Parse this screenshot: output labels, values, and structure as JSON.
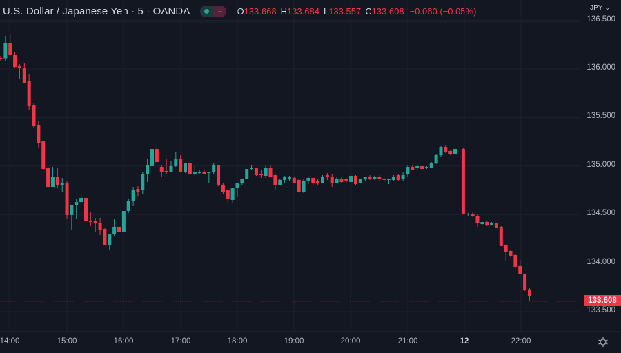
{
  "header": {
    "symbol_title": "U.S. Dollar / Japanese Yen · 5 · OANDA",
    "ohlc": {
      "open_label": "O",
      "open": "133.668",
      "high_label": "H",
      "high": "133.684",
      "low_label": "L",
      "low": "133.557",
      "close_label": "C",
      "close": "133.608",
      "change": "−0.060 (−0.05%)"
    },
    "currency": "JPY",
    "currency_chevron": "⌄",
    "toggle_icons": [
      "market-open-dot-icon",
      "delayed-data-icon"
    ]
  },
  "settings_icon": "gear-icon",
  "last_price_label": "133.608",
  "colors": {
    "background": "#131722",
    "up": "#26a69a",
    "down": "#f23645",
    "grid": "#1e222d",
    "text": "#b2b5be"
  },
  "chart_data": {
    "type": "candlestick",
    "title": "U.S. Dollar / Japanese Yen · 5 · OANDA",
    "interval": "5 min",
    "xlabel": "",
    "ylabel": "JPY",
    "ylim": [
      133.45,
      136.55
    ],
    "y_ticks": [
      "136.500",
      "136.000",
      "135.500",
      "135.000",
      "134.500",
      "134.000",
      "133.500"
    ],
    "x_ticks": [
      "14:00",
      "15:00",
      "16:00",
      "17:00",
      "18:00",
      "19:00",
      "20:00",
      "21:00",
      "12",
      "22:00"
    ],
    "grid": true,
    "last_price": 133.608,
    "candles": [
      {
        "t": "13:50",
        "o": 136.113,
        "h": 136.135,
        "l": 136.084,
        "c": 136.11
      },
      {
        "t": "13:55",
        "o": 136.11,
        "h": 136.341,
        "l": 136.085,
        "c": 136.263
      },
      {
        "t": "14:00",
        "o": 136.263,
        "h": 136.362,
        "l": 136.128,
        "c": 136.142
      },
      {
        "t": "14:05",
        "o": 136.142,
        "h": 136.178,
        "l": 136.014,
        "c": 136.021
      },
      {
        "t": "14:10",
        "o": 136.028,
        "h": 136.05,
        "l": 135.893,
        "c": 136.007
      },
      {
        "t": "14:15",
        "o": 136.007,
        "h": 136.064,
        "l": 135.851,
        "c": 135.858
      },
      {
        "t": "14:20",
        "o": 135.872,
        "h": 135.95,
        "l": 135.574,
        "c": 135.616
      },
      {
        "t": "14:25",
        "o": 135.623,
        "h": 135.645,
        "l": 135.396,
        "c": 135.41
      },
      {
        "t": "14:30",
        "o": 135.418,
        "h": 135.46,
        "l": 135.19,
        "c": 135.24
      },
      {
        "t": "14:35",
        "o": 135.254,
        "h": 135.261,
        "l": 134.97,
        "c": 134.97
      },
      {
        "t": "14:40",
        "o": 134.977,
        "h": 134.991,
        "l": 134.773,
        "c": 134.785
      },
      {
        "t": "14:45",
        "o": 134.785,
        "h": 134.991,
        "l": 134.785,
        "c": 134.885
      },
      {
        "t": "14:50",
        "o": 134.885,
        "h": 134.985,
        "l": 134.77,
        "c": 134.807
      },
      {
        "t": "14:55",
        "o": 134.807,
        "h": 134.878,
        "l": 134.736,
        "c": 134.828
      },
      {
        "t": "15:00",
        "o": 134.828,
        "h": 134.842,
        "l": 134.459,
        "c": 134.495
      },
      {
        "t": "15:05",
        "o": 134.495,
        "h": 134.551,
        "l": 134.345,
        "c": 134.601
      },
      {
        "t": "15:10",
        "o": 134.601,
        "h": 134.665,
        "l": 134.459,
        "c": 134.629
      },
      {
        "t": "15:15",
        "o": 134.629,
        "h": 134.707,
        "l": 134.629,
        "c": 134.672
      },
      {
        "t": "15:20",
        "o": 134.672,
        "h": 134.686,
        "l": 134.431,
        "c": 134.431
      },
      {
        "t": "15:25",
        "o": 134.438,
        "h": 134.523,
        "l": 134.381,
        "c": 134.424
      },
      {
        "t": "15:30",
        "o": 134.431,
        "h": 134.466,
        "l": 134.324,
        "c": 134.409
      },
      {
        "t": "15:35",
        "o": 134.416,
        "h": 134.466,
        "l": 134.289,
        "c": 134.338
      },
      {
        "t": "15:40",
        "o": 134.352,
        "h": 134.359,
        "l": 134.182,
        "c": 134.189
      },
      {
        "t": "15:45",
        "o": 134.189,
        "h": 134.239,
        "l": 134.139,
        "c": 134.295
      },
      {
        "t": "15:50",
        "o": 134.295,
        "h": 134.451,
        "l": 134.281,
        "c": 134.374
      },
      {
        "t": "15:55",
        "o": 134.374,
        "h": 134.395,
        "l": 134.303,
        "c": 134.324
      },
      {
        "t": "16:00",
        "o": 134.324,
        "h": 134.537,
        "l": 134.317,
        "c": 134.537
      },
      {
        "t": "16:05",
        "o": 134.537,
        "h": 134.665,
        "l": 134.516,
        "c": 134.643
      },
      {
        "t": "16:10",
        "o": 134.643,
        "h": 134.785,
        "l": 134.587,
        "c": 134.75
      },
      {
        "t": "16:15",
        "o": 134.764,
        "h": 134.792,
        "l": 134.693,
        "c": 134.736
      },
      {
        "t": "16:20",
        "o": 134.757,
        "h": 134.935,
        "l": 134.714,
        "c": 134.913
      },
      {
        "t": "16:25",
        "o": 134.92,
        "h": 135.07,
        "l": 134.835,
        "c": 135.006
      },
      {
        "t": "16:30",
        "o": 134.999,
        "h": 135.183,
        "l": 134.991,
        "c": 135.176
      },
      {
        "t": "16:35",
        "o": 135.176,
        "h": 135.212,
        "l": 135.027,
        "c": 135.041
      },
      {
        "t": "16:40",
        "o": 134.991,
        "h": 135.006,
        "l": 134.892,
        "c": 134.942
      },
      {
        "t": "16:45",
        "o": 134.949,
        "h": 135.077,
        "l": 134.913,
        "c": 134.935
      },
      {
        "t": "16:50",
        "o": 134.942,
        "h": 135.055,
        "l": 134.935,
        "c": 134.999
      },
      {
        "t": "16:55",
        "o": 134.999,
        "h": 135.148,
        "l": 134.991,
        "c": 135.077
      },
      {
        "t": "17:00",
        "o": 135.077,
        "h": 135.112,
        "l": 134.935,
        "c": 134.942
      },
      {
        "t": "17:05",
        "o": 134.935,
        "h": 134.949,
        "l": 134.928,
        "c": 135.034
      },
      {
        "t": "17:10",
        "o": 135.034,
        "h": 135.07,
        "l": 134.913,
        "c": 134.913
      },
      {
        "t": "17:15",
        "o": 134.92,
        "h": 134.999,
        "l": 134.899,
        "c": 134.935
      },
      {
        "t": "17:20",
        "o": 134.928,
        "h": 134.963,
        "l": 134.913,
        "c": 134.942
      },
      {
        "t": "17:25",
        "o": 134.942,
        "h": 134.963,
        "l": 134.913,
        "c": 134.92
      },
      {
        "t": "17:30",
        "o": 134.928,
        "h": 134.935,
        "l": 134.828,
        "c": 134.935
      },
      {
        "t": "17:35",
        "o": 134.935,
        "h": 135.027,
        "l": 134.92,
        "c": 135.006
      },
      {
        "t": "17:40",
        "o": 135.006,
        "h": 135.013,
        "l": 134.792,
        "c": 134.8
      },
      {
        "t": "17:45",
        "o": 134.807,
        "h": 134.821,
        "l": 134.714,
        "c": 134.729
      },
      {
        "t": "17:50",
        "o": 134.75,
        "h": 134.757,
        "l": 134.623,
        "c": 134.665
      },
      {
        "t": "17:55",
        "o": 134.651,
        "h": 134.665,
        "l": 134.623,
        "c": 134.771
      },
      {
        "t": "18:00",
        "o": 134.771,
        "h": 134.785,
        "l": 134.679,
        "c": 134.821
      },
      {
        "t": "18:05",
        "o": 134.821,
        "h": 134.842,
        "l": 134.807,
        "c": 134.871
      },
      {
        "t": "18:10",
        "o": 134.871,
        "h": 134.97,
        "l": 134.864,
        "c": 134.97
      },
      {
        "t": "18:15",
        "o": 134.97,
        "h": 135.013,
        "l": 134.956,
        "c": 134.984
      },
      {
        "t": "18:20",
        "o": 134.984,
        "h": 134.984,
        "l": 134.899,
        "c": 134.906
      },
      {
        "t": "18:25",
        "o": 134.92,
        "h": 134.956,
        "l": 134.878,
        "c": 134.906
      },
      {
        "t": "18:30",
        "o": 134.899,
        "h": 135.006,
        "l": 134.878,
        "c": 134.984
      },
      {
        "t": "18:35",
        "o": 134.984,
        "h": 135.013,
        "l": 134.892,
        "c": 134.892
      },
      {
        "t": "18:40",
        "o": 134.906,
        "h": 134.913,
        "l": 134.757,
        "c": 134.8
      },
      {
        "t": "18:45",
        "o": 134.807,
        "h": 134.871,
        "l": 134.8,
        "c": 134.857
      },
      {
        "t": "18:50",
        "o": 134.857,
        "h": 134.899,
        "l": 134.828,
        "c": 134.885
      },
      {
        "t": "18:55",
        "o": 134.871,
        "h": 134.899,
        "l": 134.842,
        "c": 134.885
      },
      {
        "t": "19:00",
        "o": 134.878,
        "h": 134.885,
        "l": 134.821,
        "c": 134.828
      },
      {
        "t": "19:05",
        "o": 134.857,
        "h": 134.864,
        "l": 134.729,
        "c": 134.736
      },
      {
        "t": "19:10",
        "o": 134.736,
        "h": 134.864,
        "l": 134.722,
        "c": 134.85
      },
      {
        "t": "19:15",
        "o": 134.85,
        "h": 134.892,
        "l": 134.814,
        "c": 134.878
      },
      {
        "t": "19:20",
        "o": 134.878,
        "h": 134.878,
        "l": 134.807,
        "c": 134.821
      },
      {
        "t": "19:25",
        "o": 134.85,
        "h": 134.864,
        "l": 134.807,
        "c": 134.828
      },
      {
        "t": "19:30",
        "o": 134.828,
        "h": 134.906,
        "l": 134.821,
        "c": 134.892
      },
      {
        "t": "19:35",
        "o": 134.906,
        "h": 134.928,
        "l": 134.857,
        "c": 134.885
      },
      {
        "t": "19:40",
        "o": 134.892,
        "h": 134.913,
        "l": 134.786,
        "c": 134.828
      },
      {
        "t": "19:45",
        "o": 134.828,
        "h": 134.885,
        "l": 134.821,
        "c": 134.864
      },
      {
        "t": "19:50",
        "o": 134.871,
        "h": 134.892,
        "l": 134.828,
        "c": 134.835
      },
      {
        "t": "19:55",
        "o": 134.864,
        "h": 134.878,
        "l": 134.821,
        "c": 134.85
      },
      {
        "t": "20:00",
        "o": 134.835,
        "h": 134.906,
        "l": 134.821,
        "c": 134.899
      },
      {
        "t": "20:05",
        "o": 134.899,
        "h": 134.906,
        "l": 134.807,
        "c": 134.814
      },
      {
        "t": "20:10",
        "o": 134.828,
        "h": 134.871,
        "l": 134.821,
        "c": 134.864
      },
      {
        "t": "20:15",
        "o": 134.864,
        "h": 134.892,
        "l": 134.85,
        "c": 134.892
      },
      {
        "t": "20:20",
        "o": 134.892,
        "h": 134.906,
        "l": 134.857,
        "c": 134.871
      },
      {
        "t": "20:25",
        "o": 134.871,
        "h": 134.899,
        "l": 134.857,
        "c": 134.885
      },
      {
        "t": "20:30",
        "o": 134.892,
        "h": 134.906,
        "l": 134.85,
        "c": 134.864
      },
      {
        "t": "20:35",
        "o": 134.871,
        "h": 134.885,
        "l": 134.835,
        "c": 134.857
      },
      {
        "t": "20:40",
        "o": 134.857,
        "h": 134.871,
        "l": 134.814,
        "c": 134.871
      },
      {
        "t": "20:45",
        "o": 134.857,
        "h": 134.906,
        "l": 134.85,
        "c": 134.892
      },
      {
        "t": "20:50",
        "o": 134.906,
        "h": 134.92,
        "l": 134.85,
        "c": 134.857
      },
      {
        "t": "20:55",
        "o": 134.87,
        "h": 134.935,
        "l": 134.85,
        "c": 134.906
      },
      {
        "t": "21:00",
        "o": 134.913,
        "h": 135.006,
        "l": 134.885,
        "c": 134.991
      },
      {
        "t": "21:05",
        "o": 134.991,
        "h": 135.006,
        "l": 134.963,
        "c": 134.963
      },
      {
        "t": "21:10",
        "o": 134.977,
        "h": 135.02,
        "l": 134.963,
        "c": 134.999
      },
      {
        "t": "21:15",
        "o": 134.999,
        "h": 135.013,
        "l": 134.956,
        "c": 134.97
      },
      {
        "t": "21:20",
        "o": 134.984,
        "h": 134.999,
        "l": 134.97,
        "c": 134.991
      },
      {
        "t": "21:25",
        "o": 134.984,
        "h": 135.041,
        "l": 134.977,
        "c": 135.034
      },
      {
        "t": "21:30",
        "o": 135.034,
        "h": 135.119,
        "l": 135.02,
        "c": 135.112
      },
      {
        "t": "21:35",
        "o": 135.112,
        "h": 135.204,
        "l": 135.098,
        "c": 135.197
      },
      {
        "t": "21:40",
        "o": 135.197,
        "h": 135.212,
        "l": 135.133,
        "c": 135.148
      },
      {
        "t": "21:45",
        "o": 135.155,
        "h": 135.169,
        "l": 135.112,
        "c": 135.126
      },
      {
        "t": "21:50",
        "o": 135.126,
        "h": 135.183,
        "l": 135.119,
        "c": 135.176
      },
      {
        "t": "00:00",
        "o": 135.176,
        "h": 135.183,
        "l": 134.502,
        "c": 134.509
      },
      {
        "t": "00:05",
        "o": 134.502,
        "h": 134.516,
        "l": 134.481,
        "c": 134.509
      },
      {
        "t": "00:10",
        "o": 134.509,
        "h": 134.523,
        "l": 134.473,
        "c": 134.481
      },
      {
        "t": "00:15",
        "o": 134.488,
        "h": 134.502,
        "l": 134.374,
        "c": 134.409
      },
      {
        "t": "00:20",
        "o": 134.402,
        "h": 134.416,
        "l": 134.395,
        "c": 134.423
      },
      {
        "t": "00:25",
        "o": 134.423,
        "h": 134.43,
        "l": 134.381,
        "c": 134.388
      },
      {
        "t": "00:30",
        "o": 134.395,
        "h": 134.423,
        "l": 134.388,
        "c": 134.416
      },
      {
        "t": "00:35",
        "o": 134.416,
        "h": 134.416,
        "l": 134.359,
        "c": 134.366
      },
      {
        "t": "00:40",
        "o": 134.374,
        "h": 134.381,
        "l": 134.175,
        "c": 134.175
      },
      {
        "t": "00:45",
        "o": 134.182,
        "h": 134.196,
        "l": 134.026,
        "c": 134.118
      },
      {
        "t": "00:50",
        "o": 134.125,
        "h": 134.132,
        "l": 134.062,
        "c": 134.076
      },
      {
        "t": "00:55",
        "o": 134.083,
        "h": 134.09,
        "l": 133.949,
        "c": 133.963
      },
      {
        "t": "01:00",
        "o": 133.97,
        "h": 134.034,
        "l": 133.935,
        "c": 133.885
      },
      {
        "t": "01:05",
        "o": 133.885,
        "h": 133.892,
        "l": 133.714,
        "c": 133.722
      },
      {
        "t": "01:10",
        "o": 133.729,
        "h": 133.743,
        "l": 133.615,
        "c": 133.658
      }
    ]
  }
}
